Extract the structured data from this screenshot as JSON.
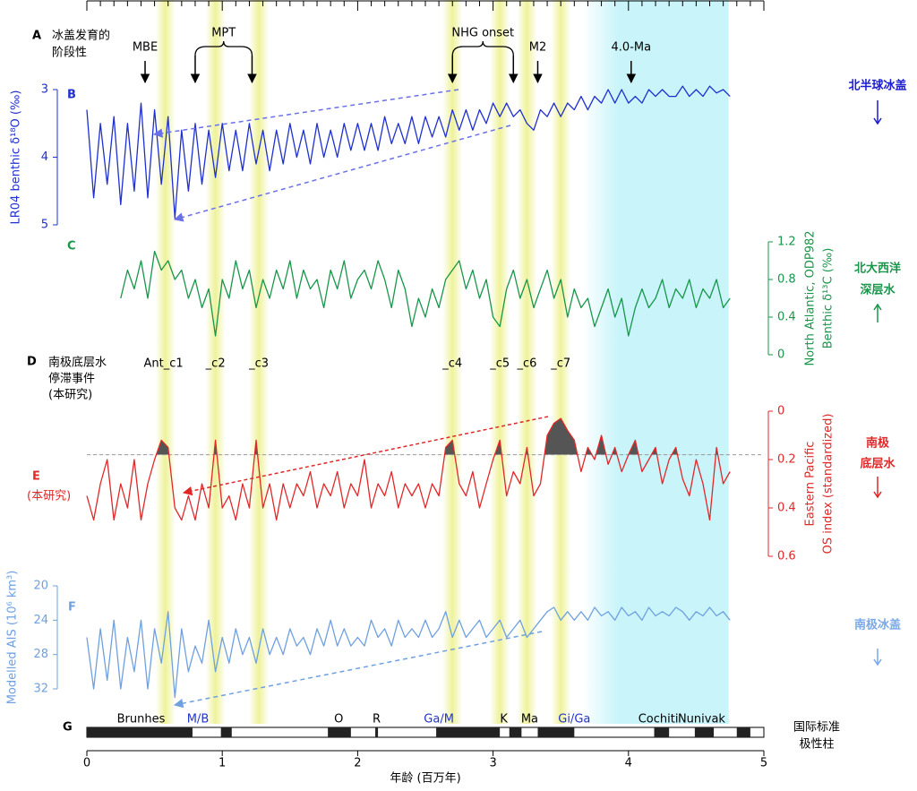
{
  "figure": {
    "x_label": "年龄 (百万年)",
    "xlim": [
      0,
      5
    ],
    "xticks": [
      0,
      1,
      2,
      3,
      4,
      5
    ],
    "panel_a": {
      "label": "A",
      "text": [
        "冰盖发育的",
        "阶段性"
      ]
    },
    "panel_d": {
      "label": "D",
      "text": [
        "南极底层水",
        "停滞事件",
        "(本研究)"
      ]
    },
    "events": [
      {
        "label": "MBE",
        "ages": [
          0.43
        ]
      },
      {
        "label": "MPT",
        "ages": [
          0.8,
          1.22
        ]
      },
      {
        "label": "NHG onset",
        "ages": [
          2.7,
          3.15
        ]
      },
      {
        "label": "M2",
        "ages": [
          3.33
        ]
      },
      {
        "label": "4.0-Ma",
        "ages": [
          4.02
        ]
      }
    ],
    "stagnation_events": [
      {
        "label": "Ant_c1",
        "age": 0.58
      },
      {
        "label": "_c2",
        "age": 0.95
      },
      {
        "label": "_c3",
        "age": 1.27
      },
      {
        "label": "_c4",
        "age": 2.7
      },
      {
        "label": "_c5",
        "age": 3.05
      },
      {
        "label": "_c6",
        "age": 3.25
      },
      {
        "label": "_c7",
        "age": 3.5
      }
    ],
    "warm_interval": [
      3.66,
      4.74
    ],
    "side_labels": [
      {
        "text": [
          "北半球冰盖"
        ],
        "color": "#1a1ad0"
      },
      {
        "text": [
          "北大西洋",
          "深层水"
        ],
        "color": "#18964a"
      },
      {
        "text": [
          "南极",
          "底层水"
        ],
        "color": "#e02828"
      },
      {
        "text": [
          "南极冰盖"
        ],
        "color": "#7aa8e8"
      }
    ]
  },
  "chart_data": [
    {
      "type": "line",
      "label": "B",
      "y_label": "LR04 benthic δ¹⁸O (‰)",
      "color": "#1f2fd0",
      "ylim": [
        5,
        3
      ],
      "yticks": [
        3,
        4,
        5
      ],
      "x": [
        0,
        0.05,
        0.1,
        0.15,
        0.2,
        0.25,
        0.3,
        0.35,
        0.4,
        0.45,
        0.5,
        0.55,
        0.6,
        0.65,
        0.7,
        0.75,
        0.8,
        0.85,
        0.9,
        0.95,
        1,
        1.05,
        1.1,
        1.15,
        1.2,
        1.25,
        1.3,
        1.35,
        1.4,
        1.45,
        1.5,
        1.55,
        1.6,
        1.65,
        1.7,
        1.75,
        1.8,
        1.85,
        1.9,
        1.95,
        2,
        2.05,
        2.1,
        2.15,
        2.2,
        2.25,
        2.3,
        2.35,
        2.4,
        2.45,
        2.5,
        2.55,
        2.6,
        2.65,
        2.7,
        2.75,
        2.8,
        2.85,
        2.9,
        2.95,
        3,
        3.05,
        3.1,
        3.15,
        3.2,
        3.25,
        3.3,
        3.35,
        3.4,
        3.45,
        3.5,
        3.55,
        3.6,
        3.65,
        3.7,
        3.75,
        3.8,
        3.85,
        3.9,
        3.95,
        4,
        4.05,
        4.1,
        4.15,
        4.2,
        4.25,
        4.3,
        4.35,
        4.4,
        4.45,
        4.5,
        4.55,
        4.6,
        4.65,
        4.7,
        4.75
      ],
      "values": [
        3.3,
        4.6,
        3.5,
        4.4,
        3.4,
        4.7,
        3.5,
        4.5,
        3.2,
        4.6,
        3.3,
        4.4,
        3.4,
        4.9,
        3.6,
        4.5,
        3.5,
        4.4,
        3.6,
        4.3,
        3.5,
        4.2,
        3.6,
        4.2,
        3.5,
        4.1,
        3.6,
        4.2,
        3.6,
        4.1,
        3.5,
        4.0,
        3.6,
        4.1,
        3.5,
        4.0,
        3.6,
        4.0,
        3.5,
        3.9,
        3.5,
        3.9,
        3.5,
        3.9,
        3.4,
        3.8,
        3.5,
        3.8,
        3.4,
        3.8,
        3.4,
        3.7,
        3.4,
        3.7,
        3.3,
        3.6,
        3.3,
        3.6,
        3.3,
        3.5,
        3.2,
        3.4,
        3.2,
        3.4,
        3.3,
        3.5,
        3.6,
        3.3,
        3.4,
        3.2,
        3.4,
        3.2,
        3.3,
        3.1,
        3.3,
        3.1,
        3.2,
        3.0,
        3.2,
        3.0,
        3.2,
        3.1,
        3.2,
        3.0,
        3.1,
        3.0,
        3.1,
        3.1,
        2.95,
        3.1,
        3.0,
        3.1,
        2.95,
        3.05,
        3.0,
        3.1
      ]
    },
    {
      "type": "line",
      "label": "C",
      "y_label": [
        "North Atlantic, ODP982",
        "Benthic δ¹³C (‰)"
      ],
      "color": "#18964a",
      "ylim": [
        0,
        1.2
      ],
      "yticks": [
        0,
        0.4,
        0.8,
        1.2
      ],
      "x": [
        0.25,
        0.3,
        0.35,
        0.4,
        0.45,
        0.5,
        0.55,
        0.6,
        0.65,
        0.7,
        0.75,
        0.8,
        0.85,
        0.9,
        0.95,
        1,
        1.05,
        1.1,
        1.15,
        1.2,
        1.25,
        1.3,
        1.35,
        1.4,
        1.45,
        1.5,
        1.55,
        1.6,
        1.65,
        1.7,
        1.75,
        1.8,
        1.85,
        1.9,
        1.95,
        2,
        2.05,
        2.1,
        2.15,
        2.2,
        2.25,
        2.3,
        2.35,
        2.4,
        2.45,
        2.5,
        2.55,
        2.6,
        2.65,
        2.7,
        2.75,
        2.8,
        2.85,
        2.9,
        2.95,
        3,
        3.05,
        3.1,
        3.15,
        3.2,
        3.25,
        3.3,
        3.35,
        3.4,
        3.45,
        3.5,
        3.55,
        3.6,
        3.65,
        3.7,
        3.75,
        3.8,
        3.85,
        3.9,
        3.95,
        4,
        4.05,
        4.1,
        4.15,
        4.2,
        4.25,
        4.3,
        4.35,
        4.4,
        4.45,
        4.5,
        4.55,
        4.6,
        4.65,
        4.7,
        4.75
      ],
      "values": [
        0.6,
        0.9,
        0.7,
        1.0,
        0.6,
        1.1,
        0.9,
        1.0,
        0.8,
        0.9,
        0.6,
        0.8,
        0.5,
        0.7,
        0.2,
        0.8,
        0.6,
        1.0,
        0.7,
        0.9,
        0.5,
        0.8,
        0.6,
        0.9,
        0.7,
        1.0,
        0.6,
        0.9,
        0.7,
        0.8,
        0.5,
        0.9,
        0.7,
        1.0,
        0.6,
        0.8,
        0.9,
        0.7,
        1.0,
        0.8,
        0.5,
        0.9,
        0.7,
        0.3,
        0.6,
        0.4,
        0.7,
        0.5,
        0.8,
        0.9,
        1.0,
        0.7,
        0.9,
        0.6,
        0.8,
        0.4,
        0.3,
        0.7,
        0.9,
        0.6,
        0.8,
        0.5,
        0.7,
        0.9,
        0.6,
        0.8,
        0.4,
        0.7,
        0.5,
        0.6,
        0.3,
        0.5,
        0.7,
        0.4,
        0.6,
        0.2,
        0.5,
        0.7,
        0.5,
        0.6,
        0.8,
        0.5,
        0.7,
        0.6,
        0.8,
        0.5,
        0.7,
        0.6,
        0.8,
        0.5,
        0.6
      ]
    },
    {
      "type": "line",
      "label": "E",
      "sub_label": "(本研究)",
      "y_label": [
        "Eastern Pacific",
        "OS index (standardized)"
      ],
      "color": "#e02828",
      "ylim": [
        0.6,
        0
      ],
      "yticks": [
        0,
        0.2,
        0.4,
        0.6
      ],
      "threshold": 0.18,
      "x": [
        0,
        0.05,
        0.1,
        0.15,
        0.2,
        0.25,
        0.3,
        0.35,
        0.4,
        0.45,
        0.5,
        0.55,
        0.6,
        0.65,
        0.7,
        0.75,
        0.8,
        0.85,
        0.9,
        0.95,
        1,
        1.05,
        1.1,
        1.15,
        1.2,
        1.25,
        1.3,
        1.35,
        1.4,
        1.45,
        1.5,
        1.55,
        1.6,
        1.65,
        1.7,
        1.75,
        1.8,
        1.85,
        1.9,
        1.95,
        2,
        2.05,
        2.1,
        2.15,
        2.2,
        2.25,
        2.3,
        2.35,
        2.4,
        2.45,
        2.5,
        2.55,
        2.6,
        2.65,
        2.7,
        2.75,
        2.8,
        2.85,
        2.9,
        2.95,
        3,
        3.05,
        3.1,
        3.15,
        3.2,
        3.25,
        3.3,
        3.35,
        3.4,
        3.45,
        3.5,
        3.55,
        3.6,
        3.65,
        3.7,
        3.75,
        3.8,
        3.85,
        3.9,
        3.95,
        4,
        4.05,
        4.1,
        4.15,
        4.2,
        4.25,
        4.3,
        4.35,
        4.4,
        4.45,
        4.5,
        4.55,
        4.6,
        4.65,
        4.7,
        4.75
      ],
      "values": [
        0.35,
        0.45,
        0.3,
        0.2,
        0.45,
        0.3,
        0.4,
        0.2,
        0.45,
        0.3,
        0.2,
        0.12,
        0.15,
        0.4,
        0.45,
        0.35,
        0.45,
        0.3,
        0.4,
        0.12,
        0.4,
        0.35,
        0.45,
        0.3,
        0.4,
        0.12,
        0.4,
        0.3,
        0.45,
        0.3,
        0.4,
        0.3,
        0.35,
        0.25,
        0.4,
        0.3,
        0.35,
        0.25,
        0.4,
        0.3,
        0.35,
        0.2,
        0.4,
        0.3,
        0.35,
        0.25,
        0.4,
        0.3,
        0.35,
        0.3,
        0.4,
        0.3,
        0.35,
        0.15,
        0.12,
        0.3,
        0.35,
        0.25,
        0.4,
        0.3,
        0.2,
        0.12,
        0.35,
        0.25,
        0.3,
        0.15,
        0.35,
        0.3,
        0.1,
        0.05,
        0.03,
        0.08,
        0.12,
        0.25,
        0.15,
        0.2,
        0.1,
        0.22,
        0.15,
        0.25,
        0.18,
        0.12,
        0.25,
        0.2,
        0.15,
        0.3,
        0.2,
        0.15,
        0.28,
        0.35,
        0.2,
        0.3,
        0.45,
        0.15,
        0.3,
        0.25
      ]
    },
    {
      "type": "line",
      "label": "F",
      "y_label": "Modelled AIS (10⁶ km³)",
      "color": "#6fa0e0",
      "ylim": [
        32,
        20
      ],
      "yticks": [
        20,
        24,
        28,
        32
      ],
      "x": [
        0,
        0.05,
        0.1,
        0.15,
        0.2,
        0.25,
        0.3,
        0.35,
        0.4,
        0.45,
        0.5,
        0.55,
        0.6,
        0.65,
        0.7,
        0.75,
        0.8,
        0.85,
        0.9,
        0.95,
        1,
        1.05,
        1.1,
        1.15,
        1.2,
        1.25,
        1.3,
        1.35,
        1.4,
        1.45,
        1.5,
        1.55,
        1.6,
        1.65,
        1.7,
        1.75,
        1.8,
        1.85,
        1.9,
        1.95,
        2,
        2.05,
        2.1,
        2.15,
        2.2,
        2.25,
        2.3,
        2.35,
        2.4,
        2.45,
        2.5,
        2.55,
        2.6,
        2.65,
        2.7,
        2.75,
        2.8,
        2.85,
        2.9,
        2.95,
        3,
        3.05,
        3.1,
        3.15,
        3.2,
        3.25,
        3.3,
        3.35,
        3.4,
        3.45,
        3.5,
        3.55,
        3.6,
        3.65,
        3.7,
        3.75,
        3.8,
        3.85,
        3.9,
        3.95,
        4,
        4.05,
        4.1,
        4.15,
        4.2,
        4.25,
        4.3,
        4.35,
        4.4,
        4.45,
        4.5,
        4.55,
        4.6,
        4.65,
        4.7,
        4.75
      ],
      "values": [
        26,
        32,
        25,
        31,
        24,
        32,
        26,
        30,
        24,
        32,
        25,
        29,
        23,
        33,
        25,
        30,
        27,
        29,
        24,
        30,
        26,
        29,
        25,
        28,
        26,
        29,
        25,
        28,
        26,
        28,
        25,
        27,
        26,
        28,
        25,
        27,
        24,
        27,
        25,
        27,
        26,
        27,
        24,
        26,
        25,
        27,
        24,
        26,
        25,
        26,
        24,
        26,
        25,
        23,
        26,
        24,
        26,
        25,
        24,
        26,
        25,
        24,
        26,
        25,
        24,
        26,
        25,
        24,
        23,
        22.5,
        24,
        23,
        24,
        23,
        24,
        22.5,
        23.5,
        23,
        24,
        22.5,
        23.5,
        23,
        24,
        22.5,
        23.5,
        23,
        23.5,
        22.5,
        23,
        24,
        23,
        23.5,
        22.5,
        23.5,
        23,
        24
      ]
    },
    {
      "type": "polarity",
      "label": "G",
      "title": [
        "国际标准",
        "极性柱"
      ],
      "normal_intervals": [
        [
          0,
          0.78
        ],
        [
          0.99,
          1.07
        ],
        [
          1.78,
          1.95
        ],
        [
          2.13,
          2.15
        ],
        [
          2.58,
          3.05
        ],
        [
          3.12,
          3.21
        ],
        [
          3.33,
          3.6
        ],
        [
          4.19,
          4.3
        ],
        [
          4.49,
          4.63
        ],
        [
          4.8,
          4.9
        ]
      ],
      "labels": [
        {
          "text": "Brunhes",
          "age": 0.4,
          "color": "#000"
        },
        {
          "text": "M/B",
          "age": 0.82,
          "color": "#2233cc"
        },
        {
          "text": "O",
          "age": 1.86,
          "color": "#000"
        },
        {
          "text": "R",
          "age": 2.14,
          "color": "#000"
        },
        {
          "text": "Ga/M",
          "age": 2.6,
          "color": "#2233cc"
        },
        {
          "text": "K",
          "age": 3.08,
          "color": "#000"
        },
        {
          "text": "Ma",
          "age": 3.27,
          "color": "#000"
        },
        {
          "text": "Gi/Ga",
          "age": 3.6,
          "color": "#2233cc"
        },
        {
          "text": "Cochiti",
          "age": 4.22,
          "color": "#000"
        },
        {
          "text": "Nunivak",
          "age": 4.54,
          "color": "#000"
        }
      ]
    }
  ]
}
